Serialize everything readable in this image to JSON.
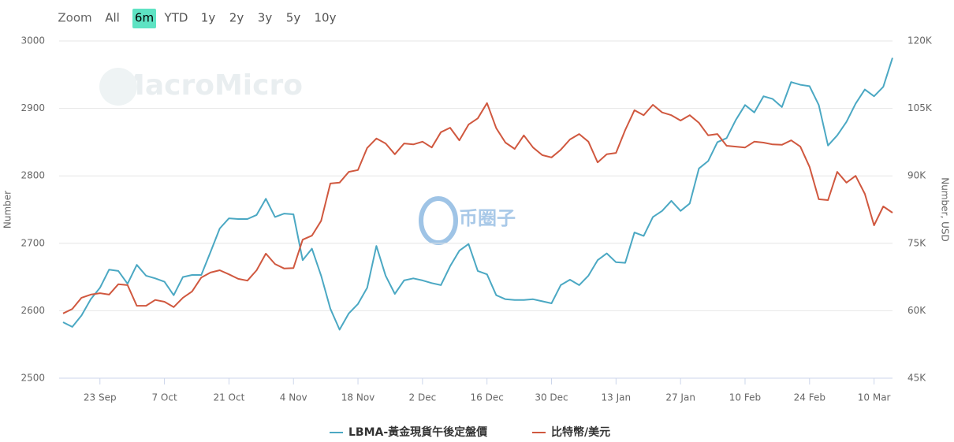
{
  "range_selector": {
    "label": "Zoom",
    "buttons": [
      "All",
      "6m",
      "YTD",
      "1y",
      "2y",
      "3y",
      "5y",
      "10y"
    ],
    "selected": "6m"
  },
  "watermarks": [
    "MacroMicro",
    "币圈子"
  ],
  "chart_data": {
    "type": "line",
    "y_label": "Number",
    "y2_label": "Number, USD",
    "categories": [
      null,
      null,
      null,
      null,
      "23 Sep",
      null,
      null,
      null,
      null,
      null,
      null,
      "7 Oct",
      null,
      null,
      null,
      null,
      null,
      null,
      "21 Oct",
      null,
      null,
      null,
      null,
      null,
      null,
      "4 Nov",
      null,
      null,
      null,
      null,
      null,
      null,
      "18 Nov",
      null,
      null,
      null,
      null,
      null,
      null,
      "2 Dec",
      null,
      null,
      null,
      null,
      null,
      null,
      "16 Dec",
      null,
      null,
      null,
      null,
      null,
      null,
      "30 Dec",
      null,
      null,
      null,
      null,
      null,
      null,
      "13 Jan",
      null,
      null,
      null,
      null,
      null,
      null,
      "27 Jan",
      null,
      null,
      null,
      null,
      null,
      null,
      "10 Feb",
      null,
      null,
      null,
      null,
      null,
      null,
      "24 Feb",
      null,
      null,
      null,
      null,
      null,
      null,
      "10 Mar",
      null,
      null
    ],
    "ylim": [
      2500,
      3000
    ],
    "yticks": [
      2500,
      2600,
      2700,
      2800,
      2900,
      3000
    ],
    "y2lim": [
      45000,
      120000
    ],
    "y2ticks": [
      {
        "value": 45000,
        "label": "45K"
      },
      {
        "value": 60000,
        "label": "60K"
      },
      {
        "value": 75000,
        "label": "75K"
      },
      {
        "value": 90000,
        "label": "90K"
      },
      {
        "value": 105000,
        "label": "105K"
      },
      {
        "value": 120000,
        "label": "120K"
      }
    ],
    "grid": true,
    "series": [
      {
        "name": "LBMA-黃金現貨午後定盤價",
        "color": "#4ba8c3",
        "axis": "y",
        "values": [
          2583,
          2576,
          2593,
          2617,
          2634,
          2661,
          2659,
          2640,
          2668,
          2652,
          2648,
          2643,
          2623,
          2650,
          2653,
          2653,
          2687,
          2722,
          2737,
          2736,
          2736,
          2742,
          2766,
          2739,
          2744,
          2743,
          2675,
          2692,
          2652,
          2603,
          2572,
          2596,
          2610,
          2634,
          2696,
          2652,
          2625,
          2645,
          2648,
          2645,
          2641,
          2638,
          2666,
          2689,
          2699,
          2659,
          2654,
          2623,
          2617,
          2616,
          2616,
          2617,
          2614,
          2611,
          2638,
          2646,
          2638,
          2652,
          2675,
          2685,
          2672,
          2671,
          2716,
          2711,
          2739,
          2748,
          2763,
          2748,
          2759,
          2811,
          2822,
          2850,
          2856,
          2883,
          2905,
          2894,
          2918,
          2914,
          2902,
          2939,
          2935,
          2933,
          2905,
          2845,
          2860,
          2880,
          2907,
          2928,
          2918,
          2932,
          2975
        ]
      },
      {
        "name": "比特幣/美元",
        "color": "#d0583f",
        "axis": "y2",
        "values": [
          59400,
          60400,
          62900,
          63600,
          63900,
          63600,
          65900,
          65700,
          61100,
          61100,
          62400,
          62000,
          60800,
          62900,
          64300,
          67400,
          68500,
          69000,
          68100,
          67100,
          66700,
          69000,
          72700,
          70400,
          69400,
          69500,
          75800,
          76700,
          80000,
          88300,
          88500,
          90900,
          91300,
          96200,
          98300,
          97200,
          94800,
          97200,
          97000,
          97600,
          96300,
          99700,
          100700,
          97900,
          101400,
          102800,
          106200,
          100600,
          97400,
          96000,
          99000,
          96300,
          94600,
          94100,
          95800,
          98100,
          99300,
          97600,
          93000,
          94800,
          95100,
          100200,
          104600,
          103500,
          105800,
          104100,
          103500,
          102300,
          103500,
          101800,
          99000,
          99300,
          96700,
          96500,
          96300,
          97600,
          97400,
          97000,
          96900,
          97900,
          96500,
          92000,
          84800,
          84600,
          90900,
          88500,
          90000,
          86000,
          79000,
          83200,
          81800
        ]
      }
    ]
  }
}
